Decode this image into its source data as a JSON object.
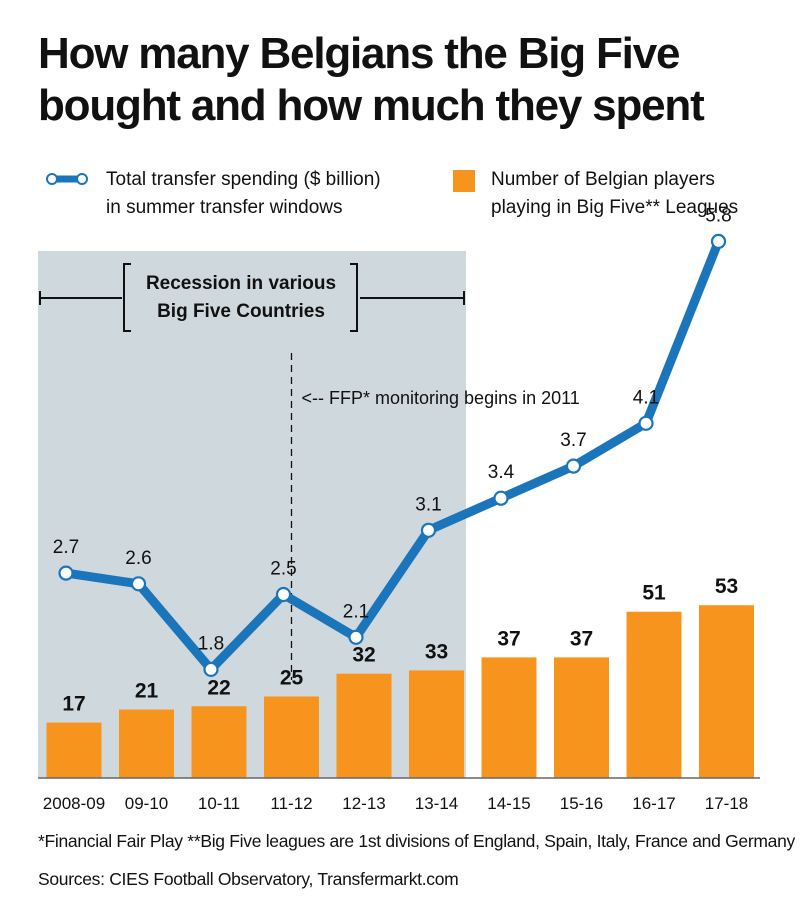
{
  "title_line1": "How many Belgians the Big Five",
  "title_line2": "bought and how much they spent",
  "legend": {
    "line_label_1": "Total transfer spending ($ billion)",
    "line_label_2": "in summer transfer windows",
    "bar_label_1": "Number of Belgian players",
    "bar_label_2": "playing in Big Five** Leagues"
  },
  "annotations": {
    "recession_1": "Recession in various",
    "recession_2": "Big Five Countries",
    "ffp": "<-- FFP* monitoring begins in 2011"
  },
  "footnote": "*Financial Fair Play **Big Five leagues are 1st divisions of England, Spain, Italy, France and Germany",
  "sources": "Sources: CIES Football Observatory, Transfermarkt.com",
  "colors": {
    "line": "#1b75bb",
    "bar": "#f7941d",
    "shade": "#cfd8dd"
  },
  "chart_data": {
    "type": "bar",
    "categories": [
      "2008-09",
      "09-10",
      "10-11",
      "11-12",
      "12-13",
      "13-14",
      "14-15",
      "15-16",
      "16-17",
      "17-18"
    ],
    "series": [
      {
        "name": "Number of Belgian players playing in Big Five** Leagues",
        "type": "bar",
        "values": [
          17,
          21,
          22,
          25,
          32,
          33,
          37,
          37,
          51,
          53
        ]
      },
      {
        "name": "Total transfer spending ($ billion) in summer transfer windows",
        "type": "line",
        "values": [
          2.7,
          2.6,
          1.8,
          2.5,
          2.1,
          3.1,
          3.4,
          3.7,
          4.1,
          5.8
        ]
      }
    ],
    "shaded_range": [
      "2008-09",
      "13-14"
    ],
    "marker_category": "11-12"
  }
}
